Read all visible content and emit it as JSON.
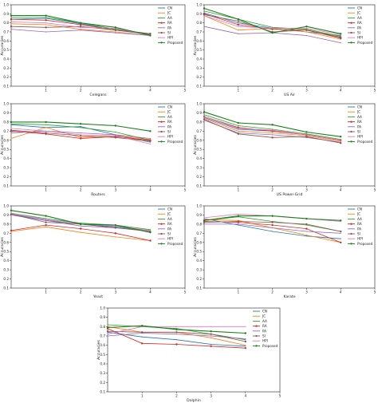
{
  "legend_labels": [
    "CN",
    "JC",
    "AA",
    "RA",
    "PA",
    "SI",
    "HPI",
    "Proposed"
  ],
  "colors": [
    "#1f77b4",
    "#ff7f0e",
    "#2ca02c",
    "#d62728",
    "#9467bd",
    "#8c564b",
    "#e377c2",
    "#1a7f1a"
  ],
  "chart_data": [
    {
      "type": "line",
      "xlabel": "Celegans",
      "ylabel": "Accuracies",
      "xlim": [
        0,
        5
      ],
      "ylim": [
        0.1,
        1.0
      ],
      "xticks": [
        1,
        2,
        3,
        4,
        5
      ],
      "yticks": [
        0.1,
        0.2,
        0.3,
        0.4,
        0.5,
        0.6,
        0.7,
        0.8,
        0.9,
        1.0
      ],
      "x": [
        0,
        1,
        2,
        3,
        4
      ],
      "series": [
        {
          "name": "CN",
          "values": [
            0.84,
            0.85,
            0.79,
            0.72,
            0.67
          ]
        },
        {
          "name": "JC",
          "values": [
            0.79,
            0.78,
            0.73,
            0.7,
            0.66
          ]
        },
        {
          "name": "AA",
          "values": [
            0.86,
            0.86,
            0.8,
            0.73,
            0.68
          ]
        },
        {
          "name": "RA",
          "values": [
            0.84,
            0.83,
            0.78,
            0.72,
            0.68
          ]
        },
        {
          "name": "PA",
          "values": [
            0.73,
            0.7,
            0.72,
            0.69,
            0.66
          ]
        },
        {
          "name": "SI",
          "values": [
            0.76,
            0.75,
            0.76,
            0.72,
            0.68
          ]
        },
        {
          "name": "HPI",
          "values": [
            0.81,
            0.8,
            0.75,
            0.74,
            0.66
          ]
        },
        {
          "name": "Proposed",
          "values": [
            0.88,
            0.88,
            0.8,
            0.75,
            0.66
          ]
        }
      ]
    },
    {
      "type": "line",
      "xlabel": "US Air",
      "ylabel": "Accuracies",
      "xlim": [
        0,
        5
      ],
      "ylim": [
        0.1,
        1.0
      ],
      "xticks": [
        1,
        2,
        3,
        4,
        5
      ],
      "yticks": [
        0.1,
        0.2,
        0.3,
        0.4,
        0.5,
        0.6,
        0.7,
        0.8,
        0.9,
        1.0
      ],
      "x": [
        0,
        1,
        2,
        3,
        4
      ],
      "series": [
        {
          "name": "CN",
          "values": [
            0.91,
            0.8,
            0.74,
            0.7,
            0.66
          ]
        },
        {
          "name": "JC",
          "values": [
            0.88,
            0.72,
            0.74,
            0.7,
            0.62
          ]
        },
        {
          "name": "AA",
          "values": [
            0.93,
            0.84,
            0.75,
            0.73,
            0.65
          ]
        },
        {
          "name": "RA",
          "values": [
            0.9,
            0.78,
            0.73,
            0.72,
            0.63
          ]
        },
        {
          "name": "PA",
          "values": [
            0.76,
            0.68,
            0.69,
            0.66,
            0.58
          ]
        },
        {
          "name": "SI",
          "values": [
            0.89,
            0.82,
            0.7,
            0.72,
            0.64
          ]
        },
        {
          "name": "HPI",
          "values": [
            0.88,
            0.76,
            0.74,
            0.74,
            0.67
          ]
        },
        {
          "name": "Proposed",
          "values": [
            0.96,
            0.84,
            0.69,
            0.76,
            0.68
          ]
        }
      ]
    },
    {
      "type": "line",
      "xlabel": "Routers",
      "ylabel": "Accuracies",
      "xlim": [
        0,
        5
      ],
      "ylim": [
        0.1,
        1.0
      ],
      "xticks": [
        1,
        2,
        3,
        4,
        5
      ],
      "yticks": [
        0.1,
        0.2,
        0.3,
        0.4,
        0.5,
        0.6,
        0.7,
        0.8,
        0.9,
        1.0
      ],
      "x": [
        0,
        1,
        2,
        3,
        4
      ],
      "series": [
        {
          "name": "CN",
          "values": [
            0.77,
            0.74,
            0.75,
            0.66,
            0.58
          ]
        },
        {
          "name": "JC",
          "values": [
            0.62,
            0.74,
            0.63,
            0.65,
            0.61
          ]
        },
        {
          "name": "AA",
          "values": [
            0.78,
            0.77,
            0.74,
            0.69,
            0.6
          ]
        },
        {
          "name": "RA",
          "values": [
            0.7,
            0.67,
            0.62,
            0.64,
            0.6
          ]
        },
        {
          "name": "PA",
          "values": [
            0.68,
            0.7,
            0.68,
            0.66,
            0.62
          ]
        },
        {
          "name": "SI",
          "values": [
            0.71,
            0.68,
            0.65,
            0.63,
            0.59
          ]
        },
        {
          "name": "HPI",
          "values": [
            0.73,
            0.7,
            0.66,
            0.65,
            0.56
          ]
        },
        {
          "name": "Proposed",
          "values": [
            0.8,
            0.8,
            0.78,
            0.76,
            0.7
          ]
        }
      ]
    },
    {
      "type": "line",
      "xlabel": "US Power-Grid",
      "ylabel": "Accuracies",
      "xlim": [
        0,
        5
      ],
      "ylim": [
        0.1,
        1.0
      ],
      "xticks": [
        1,
        2,
        3,
        4,
        5
      ],
      "yticks": [
        0.1,
        0.2,
        0.3,
        0.4,
        0.5,
        0.6,
        0.7,
        0.8,
        0.9,
        1.0
      ],
      "x": [
        0,
        1,
        2,
        3,
        4
      ],
      "series": [
        {
          "name": "CN",
          "values": [
            0.85,
            0.72,
            0.7,
            0.66,
            0.6
          ]
        },
        {
          "name": "JC",
          "values": [
            0.84,
            0.7,
            0.68,
            0.65,
            0.59
          ]
        },
        {
          "name": "AA",
          "values": [
            0.88,
            0.76,
            0.72,
            0.67,
            0.61
          ]
        },
        {
          "name": "RA",
          "values": [
            0.86,
            0.74,
            0.7,
            0.66,
            0.6
          ]
        },
        {
          "name": "PA",
          "values": [
            0.82,
            0.68,
            0.66,
            0.63,
            0.58
          ]
        },
        {
          "name": "SI",
          "values": [
            0.83,
            0.67,
            0.63,
            0.64,
            0.57
          ]
        },
        {
          "name": "HPI",
          "values": [
            0.86,
            0.73,
            0.71,
            0.66,
            0.6
          ]
        },
        {
          "name": "Proposed",
          "values": [
            0.91,
            0.79,
            0.77,
            0.69,
            0.64
          ]
        }
      ]
    },
    {
      "type": "line",
      "xlabel": "Yeast",
      "ylabel": "Accuracies",
      "xlim": [
        0,
        5
      ],
      "ylim": [
        0.1,
        1.0
      ],
      "xticks": [
        1,
        2,
        3,
        4,
        5
      ],
      "yticks": [
        0.1,
        0.2,
        0.3,
        0.4,
        0.5,
        0.6,
        0.7,
        0.8,
        0.9,
        1.0
      ],
      "x": [
        0,
        1,
        2,
        3,
        4
      ],
      "series": [
        {
          "name": "CN",
          "values": [
            0.91,
            0.84,
            0.8,
            0.77,
            0.73
          ]
        },
        {
          "name": "JC",
          "values": [
            0.72,
            0.77,
            0.71,
            0.66,
            0.62
          ]
        },
        {
          "name": "AA",
          "values": [
            0.92,
            0.86,
            0.81,
            0.79,
            0.74
          ]
        },
        {
          "name": "RA",
          "values": [
            0.73,
            0.79,
            0.75,
            0.7,
            0.62
          ]
        },
        {
          "name": "PA",
          "values": [
            0.9,
            0.84,
            0.78,
            0.76,
            0.73
          ]
        },
        {
          "name": "SI",
          "values": [
            0.91,
            0.82,
            0.8,
            0.76,
            0.72
          ]
        },
        {
          "name": "HPI",
          "values": [
            0.92,
            0.85,
            0.8,
            0.78,
            0.73
          ]
        },
        {
          "name": "Proposed",
          "values": [
            0.95,
            0.89,
            0.8,
            0.79,
            0.71
          ]
        }
      ]
    },
    {
      "type": "line",
      "xlabel": "Karate",
      "ylabel": "Accuracies",
      "xlim": [
        0,
        5
      ],
      "ylim": [
        0.1,
        1.0
      ],
      "xticks": [
        1,
        2,
        3,
        4,
        5
      ],
      "yticks": [
        0.1,
        0.2,
        0.3,
        0.4,
        0.5,
        0.6,
        0.7,
        0.8,
        0.9,
        1.0
      ],
      "x": [
        0,
        1,
        2,
        3,
        4
      ],
      "series": [
        {
          "name": "CN",
          "values": [
            0.86,
            0.79,
            0.72,
            0.67,
            0.64
          ]
        },
        {
          "name": "JC",
          "values": [
            0.85,
            0.84,
            0.76,
            0.68,
            0.6
          ]
        },
        {
          "name": "AA",
          "values": [
            0.84,
            0.88,
            0.83,
            0.79,
            0.72
          ]
        },
        {
          "name": "RA",
          "values": [
            0.83,
            0.82,
            0.79,
            0.75,
            0.6
          ]
        },
        {
          "name": "PA",
          "values": [
            0.8,
            0.8,
            0.76,
            0.72,
            0.7
          ]
        },
        {
          "name": "SI",
          "values": [
            0.82,
            0.83,
            0.82,
            0.8,
            0.72
          ]
        },
        {
          "name": "HPI",
          "values": [
            0.87,
            0.91,
            0.89,
            0.86,
            0.83
          ]
        },
        {
          "name": "Proposed",
          "values": [
            0.84,
            0.89,
            0.89,
            0.86,
            0.84
          ]
        }
      ]
    },
    {
      "type": "line",
      "xlabel": "Dolphin",
      "ylabel": "Accuracies",
      "xlim": [
        0,
        5
      ],
      "ylim": [
        0.1,
        1.0
      ],
      "xticks": [
        1,
        2,
        3,
        4,
        5
      ],
      "yticks": [
        0.1,
        0.2,
        0.3,
        0.4,
        0.5,
        0.6,
        0.7,
        0.8,
        0.9,
        1.0
      ],
      "x": [
        0,
        1,
        2,
        3,
        4
      ],
      "series": [
        {
          "name": "CN",
          "values": [
            0.74,
            0.69,
            0.66,
            0.61,
            0.59
          ]
        },
        {
          "name": "JC",
          "values": [
            0.8,
            0.74,
            0.74,
            0.68,
            0.6
          ]
        },
        {
          "name": "AA",
          "values": [
            0.82,
            0.8,
            0.78,
            0.72,
            0.66
          ]
        },
        {
          "name": "RA",
          "values": [
            0.78,
            0.62,
            0.61,
            0.59,
            0.57
          ]
        },
        {
          "name": "PA",
          "values": [
            0.7,
            0.73,
            0.72,
            0.7,
            0.67
          ]
        },
        {
          "name": "SI",
          "values": [
            0.75,
            0.74,
            0.74,
            0.72,
            0.64
          ]
        },
        {
          "name": "HPI",
          "values": [
            0.72,
            0.8,
            0.8,
            0.8,
            0.8
          ]
        },
        {
          "name": "Proposed",
          "values": [
            0.79,
            0.81,
            0.77,
            0.75,
            0.73
          ]
        }
      ]
    }
  ]
}
